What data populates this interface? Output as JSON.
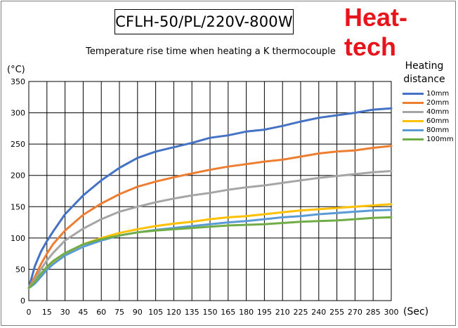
{
  "header": {
    "model": "CFLH-50/PL/220V-800W",
    "brand": "Heat-tech"
  },
  "chart_data": {
    "type": "line",
    "title": "Temperature rise time when heating a K thermocouple",
    "ylabel": "(°C)",
    "xlabel": "(Sec)",
    "xlim": [
      0,
      300
    ],
    "ylim": [
      0,
      350
    ],
    "xticks": [
      0,
      15,
      30,
      45,
      60,
      75,
      90,
      105,
      120,
      135,
      150,
      165,
      180,
      195,
      210,
      225,
      240,
      255,
      270,
      285,
      300
    ],
    "yticks": [
      0,
      50,
      100,
      150,
      200,
      250,
      300,
      350
    ],
    "grid": true,
    "legend_title": "Heating distance",
    "legend_position": "right",
    "series": [
      {
        "name": "10mm",
        "color": "#4472c4",
        "x": [
          0,
          5,
          10,
          15,
          20,
          30,
          45,
          60,
          75,
          90,
          105,
          120,
          135,
          150,
          165,
          180,
          195,
          210,
          225,
          240,
          255,
          270,
          285,
          300
        ],
        "y": [
          20,
          55,
          78,
          95,
          110,
          138,
          168,
          192,
          212,
          228,
          238,
          245,
          252,
          260,
          264,
          270,
          273,
          279,
          286,
          292,
          296,
          300,
          305,
          307
        ]
      },
      {
        "name": "20mm",
        "color": "#ed7d31",
        "x": [
          0,
          5,
          10,
          15,
          20,
          30,
          45,
          60,
          75,
          90,
          105,
          120,
          135,
          150,
          165,
          180,
          195,
          210,
          225,
          240,
          255,
          270,
          285,
          300
        ],
        "y": [
          20,
          38,
          58,
          75,
          90,
          112,
          137,
          155,
          170,
          182,
          190,
          197,
          203,
          209,
          214,
          218,
          222,
          225,
          230,
          235,
          238,
          240,
          244,
          247
        ]
      },
      {
        "name": "40mm",
        "color": "#a5a5a5",
        "x": [
          0,
          5,
          10,
          15,
          20,
          30,
          45,
          60,
          75,
          90,
          105,
          120,
          135,
          150,
          165,
          180,
          195,
          210,
          225,
          240,
          255,
          270,
          285,
          300
        ],
        "y": [
          20,
          33,
          50,
          64,
          76,
          96,
          115,
          130,
          142,
          150,
          157,
          163,
          168,
          172,
          177,
          181,
          184,
          188,
          192,
          196,
          199,
          202,
          205,
          207
        ]
      },
      {
        "name": "60mm",
        "color": "#ffc000",
        "x": [
          0,
          5,
          10,
          15,
          20,
          30,
          45,
          60,
          75,
          90,
          105,
          120,
          135,
          150,
          165,
          180,
          195,
          210,
          225,
          240,
          255,
          270,
          285,
          300
        ],
        "y": [
          20,
          28,
          40,
          51,
          60,
          75,
          90,
          100,
          108,
          114,
          119,
          123,
          126,
          130,
          133,
          135,
          138,
          141,
          144,
          146,
          148,
          150,
          152,
          154
        ]
      },
      {
        "name": "80mm",
        "color": "#5b9bd5",
        "x": [
          0,
          5,
          10,
          15,
          20,
          30,
          45,
          60,
          75,
          90,
          105,
          120,
          135,
          150,
          165,
          180,
          195,
          210,
          225,
          240,
          255,
          270,
          285,
          300
        ],
        "y": [
          20,
          27,
          38,
          49,
          58,
          72,
          86,
          96,
          104,
          109,
          113,
          116,
          119,
          122,
          125,
          127,
          130,
          133,
          135,
          138,
          140,
          142,
          144,
          145
        ]
      },
      {
        "name": "100mm",
        "color": "#70ad47",
        "x": [
          0,
          5,
          10,
          15,
          20,
          30,
          45,
          60,
          75,
          90,
          105,
          120,
          135,
          150,
          165,
          180,
          195,
          210,
          225,
          240,
          255,
          270,
          285,
          300
        ],
        "y": [
          20,
          30,
          43,
          54,
          63,
          76,
          90,
          98,
          104,
          109,
          112,
          114,
          116,
          118,
          120,
          121,
          122,
          124,
          126,
          127,
          128,
          130,
          132,
          133
        ]
      }
    ]
  }
}
